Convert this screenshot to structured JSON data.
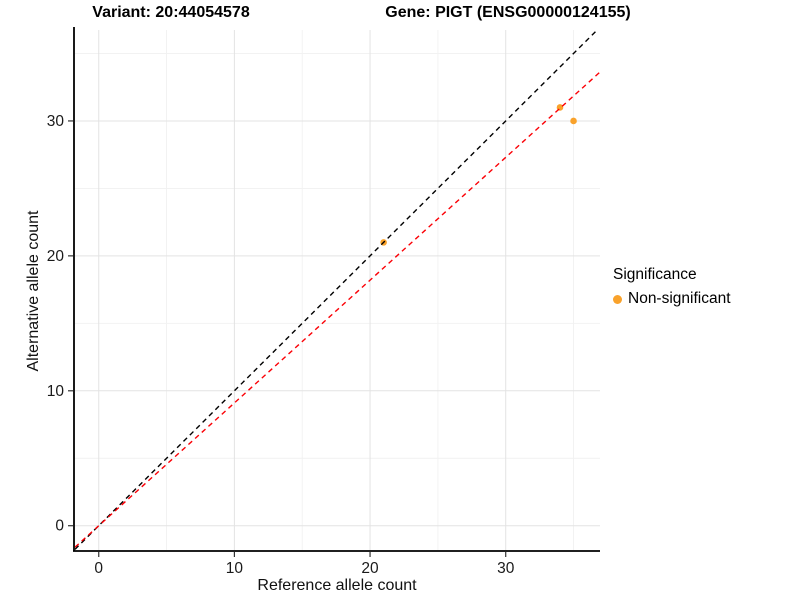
{
  "titles": {
    "variant": "Variant: 20:44054578",
    "gene": "Gene: PIGT (ENSG00000124155)"
  },
  "chart_data": {
    "type": "scatter",
    "xlabel": "Reference allele count",
    "ylabel": "Alternative allele count",
    "xlim": [
      -1.75,
      36.95
    ],
    "ylim": [
      -1.8,
      36.74
    ],
    "x_major_ticks": [
      0,
      10,
      20,
      30
    ],
    "y_major_ticks": [
      0,
      10,
      20,
      30
    ],
    "x_minor_ticks": [
      5,
      15,
      25,
      35
    ],
    "y_minor_ticks": [
      5,
      15,
      25,
      35
    ],
    "grid": true,
    "series": [
      {
        "name": "Non-significant",
        "color": "#F9A22B",
        "points": [
          [
            21,
            21
          ],
          [
            34,
            31
          ],
          [
            35,
            30
          ]
        ]
      }
    ],
    "ref_lines": [
      {
        "name": "identity-line",
        "slope": 1.0,
        "intercept": 0,
        "color": "#000000",
        "style": "dashed"
      },
      {
        "name": "fit-line",
        "slope": 0.91,
        "intercept": 0,
        "color": "#FB0006",
        "style": "dashed"
      }
    ],
    "legend": {
      "title": "Significance",
      "position": "right",
      "items": [
        {
          "label": "Non-significant",
          "color": "#F9A22B"
        }
      ]
    },
    "style": {
      "major_grid_color": "#E3E3E3",
      "minor_grid_color": "#F1F1F1",
      "axis_line_color": "#000000",
      "tick_label_color": "#1a1a1a",
      "point_radius": 3.3
    }
  }
}
